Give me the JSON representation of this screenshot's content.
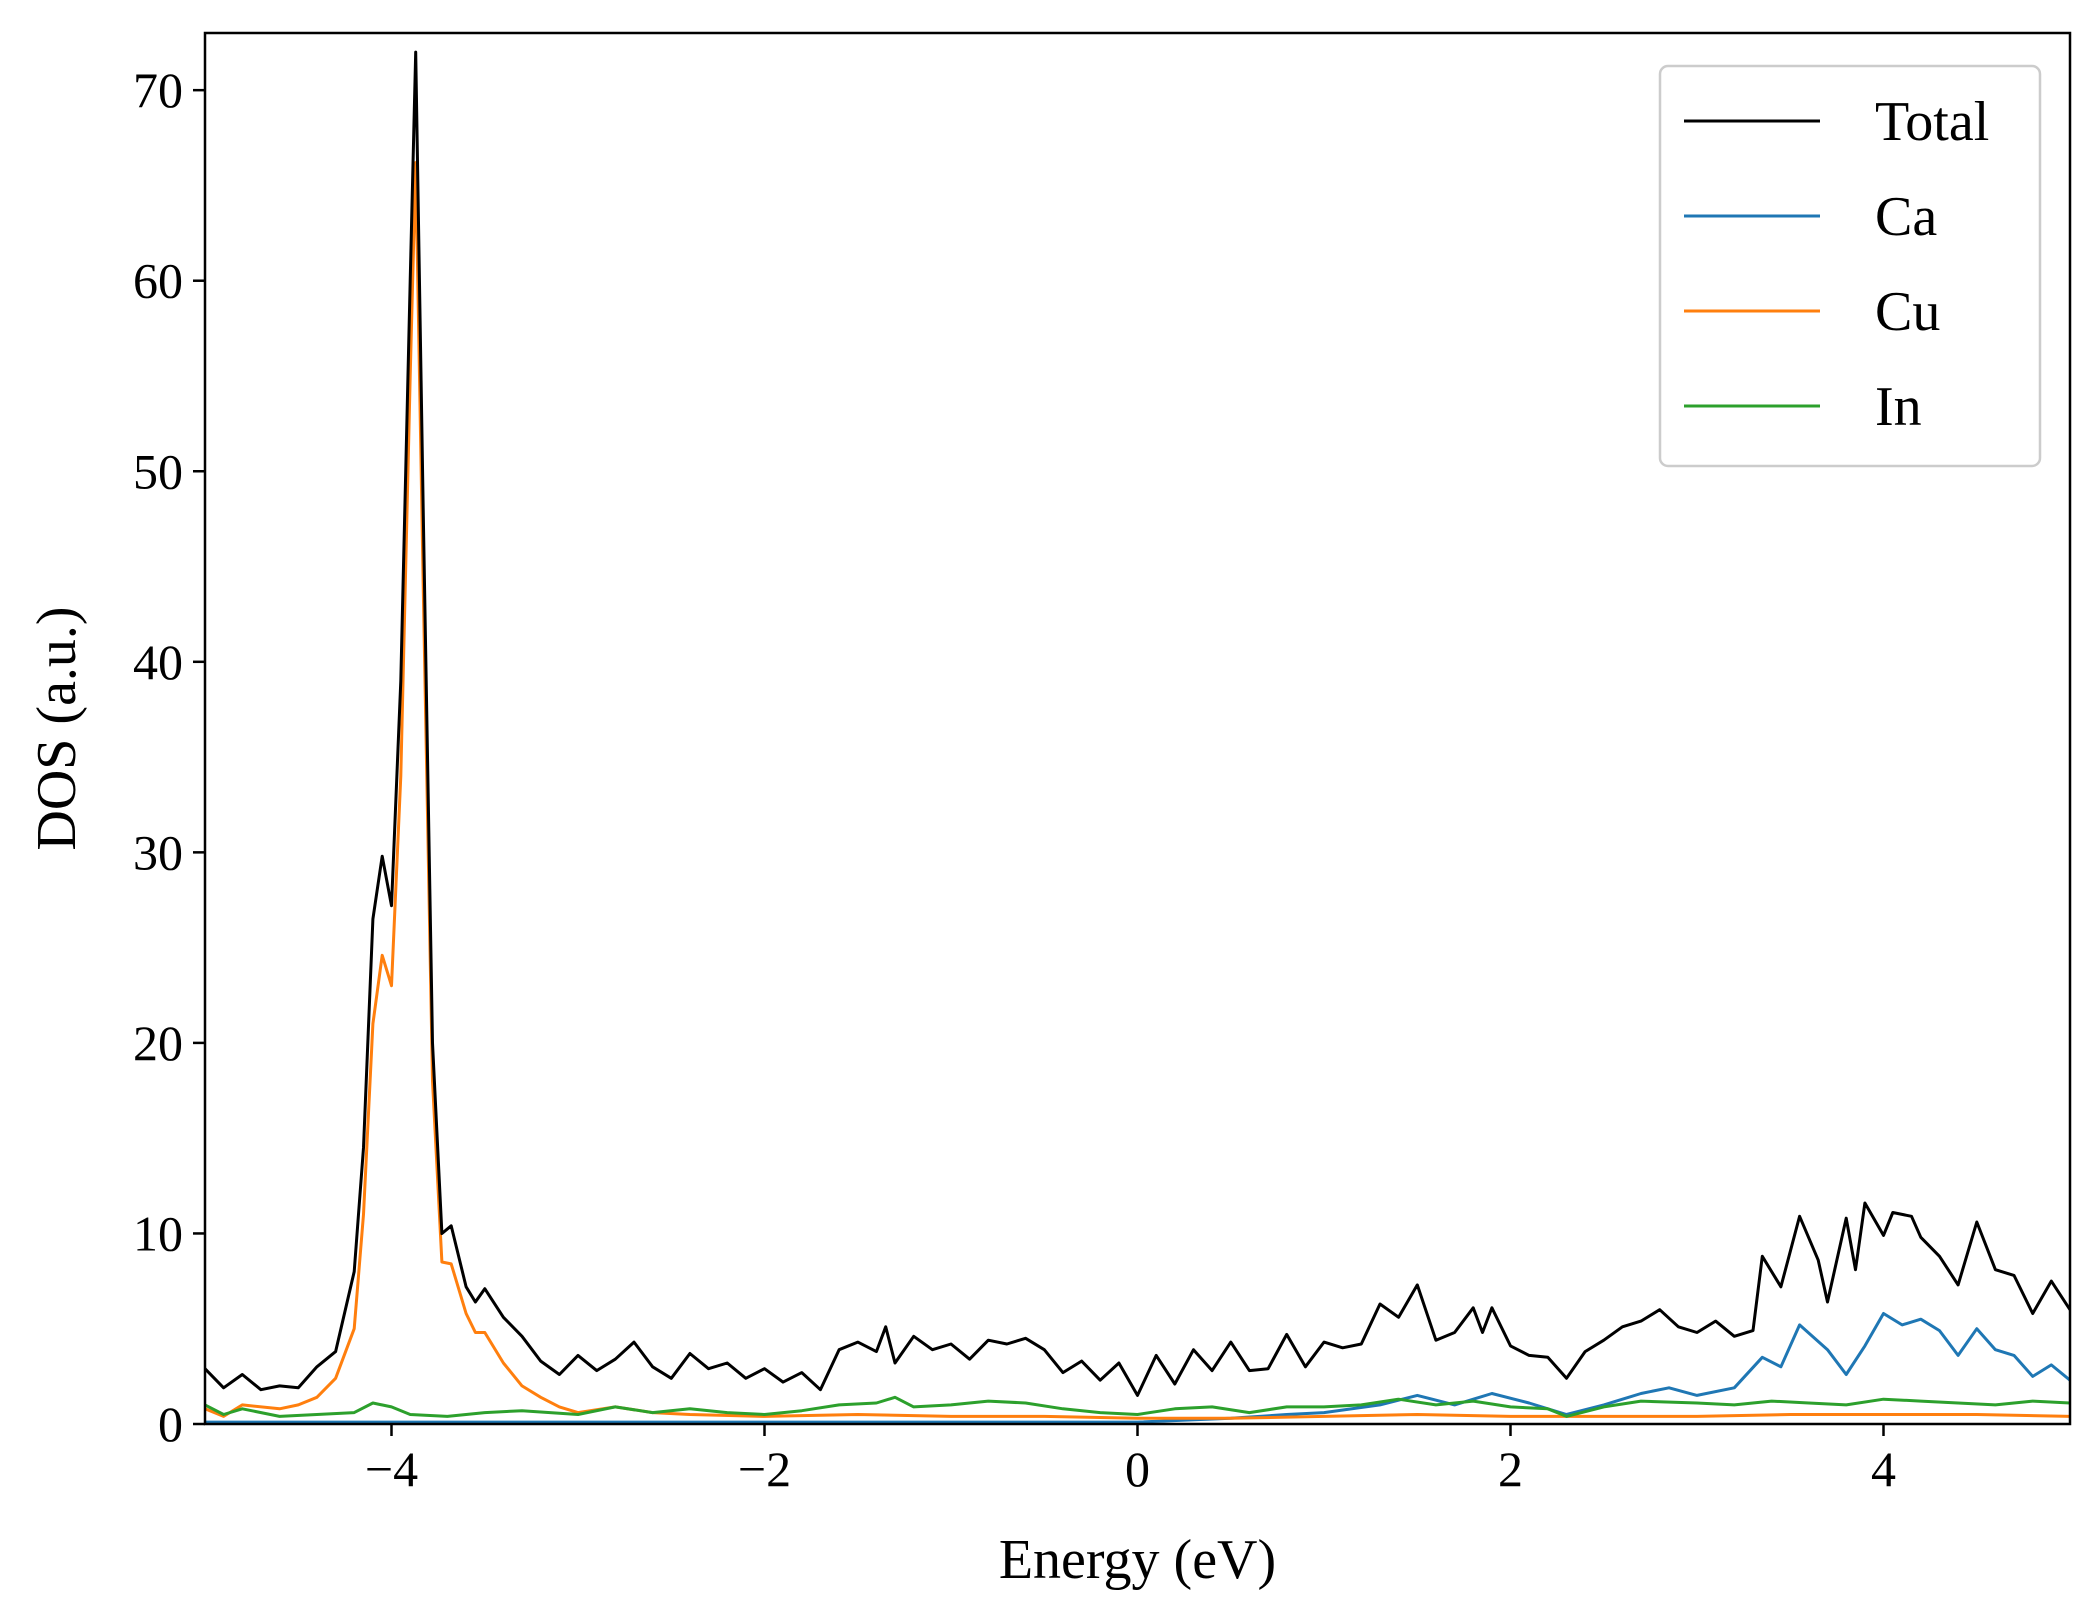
{
  "chart_data": {
    "type": "line",
    "title": "",
    "xlabel": "Energy (eV)",
    "ylabel": "DOS (a.u.)",
    "xlim": [
      -5,
      5
    ],
    "ylim": [
      0,
      73
    ],
    "xticks": [
      -4,
      -2,
      0,
      2,
      4
    ],
    "xtick_labels": [
      "−4",
      "−2",
      "0",
      "2",
      "4"
    ],
    "yticks": [
      0,
      10,
      20,
      30,
      40,
      50,
      60,
      70
    ],
    "ytick_labels": [
      "0",
      "10",
      "20",
      "30",
      "40",
      "50",
      "60",
      "70"
    ],
    "grid": false,
    "legend_position": "top-right",
    "series": [
      {
        "name": "Total",
        "color": "#000000",
        "points": [
          [
            -5.0,
            2.9
          ],
          [
            -4.9,
            1.9
          ],
          [
            -4.8,
            2.6
          ],
          [
            -4.7,
            1.8
          ],
          [
            -4.6,
            2.0
          ],
          [
            -4.5,
            1.9
          ],
          [
            -4.4,
            3.0
          ],
          [
            -4.3,
            3.8
          ],
          [
            -4.2,
            8.0
          ],
          [
            -4.15,
            14.5
          ],
          [
            -4.1,
            26.5
          ],
          [
            -4.05,
            29.8
          ],
          [
            -4.0,
            27.2
          ],
          [
            -3.95,
            39.0
          ],
          [
            -3.9,
            60.0
          ],
          [
            -3.87,
            72.0
          ],
          [
            -3.83,
            48.0
          ],
          [
            -3.78,
            20.0
          ],
          [
            -3.73,
            10.0
          ],
          [
            -3.68,
            10.4
          ],
          [
            -3.6,
            7.2
          ],
          [
            -3.55,
            6.4
          ],
          [
            -3.5,
            7.1
          ],
          [
            -3.4,
            5.6
          ],
          [
            -3.3,
            4.6
          ],
          [
            -3.2,
            3.3
          ],
          [
            -3.1,
            2.6
          ],
          [
            -3.0,
            3.6
          ],
          [
            -2.9,
            2.8
          ],
          [
            -2.8,
            3.4
          ],
          [
            -2.7,
            4.3
          ],
          [
            -2.6,
            3.0
          ],
          [
            -2.5,
            2.4
          ],
          [
            -2.4,
            3.7
          ],
          [
            -2.3,
            2.9
          ],
          [
            -2.2,
            3.2
          ],
          [
            -2.1,
            2.4
          ],
          [
            -2.0,
            2.9
          ],
          [
            -1.9,
            2.2
          ],
          [
            -1.8,
            2.7
          ],
          [
            -1.7,
            1.8
          ],
          [
            -1.6,
            3.9
          ],
          [
            -1.5,
            4.3
          ],
          [
            -1.4,
            3.8
          ],
          [
            -1.35,
            5.1
          ],
          [
            -1.3,
            3.2
          ],
          [
            -1.2,
            4.6
          ],
          [
            -1.1,
            3.9
          ],
          [
            -1.0,
            4.2
          ],
          [
            -0.9,
            3.4
          ],
          [
            -0.8,
            4.4
          ],
          [
            -0.7,
            4.2
          ],
          [
            -0.6,
            4.5
          ],
          [
            -0.5,
            3.9
          ],
          [
            -0.4,
            2.7
          ],
          [
            -0.3,
            3.3
          ],
          [
            -0.2,
            2.3
          ],
          [
            -0.1,
            3.2
          ],
          [
            0.0,
            1.5
          ],
          [
            0.1,
            3.6
          ],
          [
            0.2,
            2.1
          ],
          [
            0.3,
            3.9
          ],
          [
            0.4,
            2.8
          ],
          [
            0.5,
            4.3
          ],
          [
            0.6,
            2.8
          ],
          [
            0.7,
            2.9
          ],
          [
            0.8,
            4.7
          ],
          [
            0.9,
            3.0
          ],
          [
            1.0,
            4.3
          ],
          [
            1.1,
            4.0
          ],
          [
            1.2,
            4.2
          ],
          [
            1.3,
            6.3
          ],
          [
            1.4,
            5.6
          ],
          [
            1.5,
            7.3
          ],
          [
            1.6,
            4.4
          ],
          [
            1.7,
            4.8
          ],
          [
            1.8,
            6.1
          ],
          [
            1.85,
            4.8
          ],
          [
            1.9,
            6.1
          ],
          [
            2.0,
            4.1
          ],
          [
            2.1,
            3.6
          ],
          [
            2.2,
            3.5
          ],
          [
            2.3,
            2.4
          ],
          [
            2.4,
            3.8
          ],
          [
            2.5,
            4.4
          ],
          [
            2.6,
            5.1
          ],
          [
            2.7,
            5.4
          ],
          [
            2.8,
            6.0
          ],
          [
            2.9,
            5.1
          ],
          [
            3.0,
            4.8
          ],
          [
            3.1,
            5.4
          ],
          [
            3.2,
            4.6
          ],
          [
            3.3,
            4.9
          ],
          [
            3.35,
            8.8
          ],
          [
            3.45,
            7.2
          ],
          [
            3.55,
            10.9
          ],
          [
            3.65,
            8.6
          ],
          [
            3.7,
            6.4
          ],
          [
            3.8,
            10.8
          ],
          [
            3.85,
            8.1
          ],
          [
            3.9,
            11.6
          ],
          [
            4.0,
            9.9
          ],
          [
            4.05,
            11.1
          ],
          [
            4.15,
            10.9
          ],
          [
            4.2,
            9.8
          ],
          [
            4.3,
            8.8
          ],
          [
            4.4,
            7.3
          ],
          [
            4.5,
            10.6
          ],
          [
            4.6,
            8.1
          ],
          [
            4.7,
            7.8
          ],
          [
            4.8,
            5.8
          ],
          [
            4.9,
            7.5
          ],
          [
            5.0,
            6.0
          ]
        ]
      },
      {
        "name": "Ca",
        "color": "#1f77b4",
        "points": [
          [
            -5.0,
            0.1
          ],
          [
            -4.0,
            0.1
          ],
          [
            -3.0,
            0.1
          ],
          [
            -2.0,
            0.1
          ],
          [
            -1.0,
            0.1
          ],
          [
            0.0,
            0.1
          ],
          [
            0.5,
            0.3
          ],
          [
            0.8,
            0.5
          ],
          [
            1.0,
            0.6
          ],
          [
            1.3,
            1.0
          ],
          [
            1.5,
            1.5
          ],
          [
            1.7,
            1.0
          ],
          [
            1.9,
            1.6
          ],
          [
            2.1,
            1.1
          ],
          [
            2.3,
            0.5
          ],
          [
            2.5,
            1.0
          ],
          [
            2.7,
            1.6
          ],
          [
            2.85,
            1.9
          ],
          [
            3.0,
            1.5
          ],
          [
            3.2,
            1.9
          ],
          [
            3.35,
            3.5
          ],
          [
            3.45,
            3.0
          ],
          [
            3.55,
            5.2
          ],
          [
            3.7,
            3.9
          ],
          [
            3.8,
            2.6
          ],
          [
            3.9,
            4.1
          ],
          [
            4.0,
            5.8
          ],
          [
            4.1,
            5.2
          ],
          [
            4.2,
            5.5
          ],
          [
            4.3,
            4.9
          ],
          [
            4.4,
            3.6
          ],
          [
            4.5,
            5.0
          ],
          [
            4.6,
            3.9
          ],
          [
            4.7,
            3.6
          ],
          [
            4.8,
            2.5
          ],
          [
            4.9,
            3.1
          ],
          [
            5.0,
            2.3
          ]
        ]
      },
      {
        "name": "Cu",
        "color": "#ff7f0e",
        "points": [
          [
            -5.0,
            0.8
          ],
          [
            -4.9,
            0.4
          ],
          [
            -4.8,
            1.0
          ],
          [
            -4.6,
            0.8
          ],
          [
            -4.5,
            1.0
          ],
          [
            -4.4,
            1.4
          ],
          [
            -4.3,
            2.4
          ],
          [
            -4.2,
            5.0
          ],
          [
            -4.15,
            11.0
          ],
          [
            -4.1,
            21.0
          ],
          [
            -4.05,
            24.6
          ],
          [
            -4.0,
            23.0
          ],
          [
            -3.95,
            34.0
          ],
          [
            -3.9,
            55.0
          ],
          [
            -3.87,
            66.2
          ],
          [
            -3.83,
            44.0
          ],
          [
            -3.78,
            18.0
          ],
          [
            -3.73,
            8.5
          ],
          [
            -3.68,
            8.4
          ],
          [
            -3.6,
            5.8
          ],
          [
            -3.55,
            4.8
          ],
          [
            -3.5,
            4.8
          ],
          [
            -3.4,
            3.2
          ],
          [
            -3.3,
            2.0
          ],
          [
            -3.2,
            1.4
          ],
          [
            -3.1,
            0.9
          ],
          [
            -3.0,
            0.6
          ],
          [
            -2.8,
            0.9
          ],
          [
            -2.6,
            0.6
          ],
          [
            -2.4,
            0.5
          ],
          [
            -2.0,
            0.4
          ],
          [
            -1.5,
            0.5
          ],
          [
            -1.0,
            0.4
          ],
          [
            -0.5,
            0.4
          ],
          [
            0.0,
            0.3
          ],
          [
            0.5,
            0.3
          ],
          [
            1.0,
            0.4
          ],
          [
            1.5,
            0.5
          ],
          [
            2.0,
            0.4
          ],
          [
            2.5,
            0.4
          ],
          [
            3.0,
            0.4
          ],
          [
            3.5,
            0.5
          ],
          [
            4.0,
            0.5
          ],
          [
            4.5,
            0.5
          ],
          [
            5.0,
            0.4
          ]
        ]
      },
      {
        "name": "In",
        "color": "#2ca02c",
        "points": [
          [
            -5.0,
            1.0
          ],
          [
            -4.9,
            0.5
          ],
          [
            -4.8,
            0.8
          ],
          [
            -4.6,
            0.4
          ],
          [
            -4.4,
            0.5
          ],
          [
            -4.2,
            0.6
          ],
          [
            -4.1,
            1.1
          ],
          [
            -4.0,
            0.9
          ],
          [
            -3.9,
            0.5
          ],
          [
            -3.7,
            0.4
          ],
          [
            -3.5,
            0.6
          ],
          [
            -3.3,
            0.7
          ],
          [
            -3.0,
            0.5
          ],
          [
            -2.8,
            0.9
          ],
          [
            -2.6,
            0.6
          ],
          [
            -2.4,
            0.8
          ],
          [
            -2.2,
            0.6
          ],
          [
            -2.0,
            0.5
          ],
          [
            -1.8,
            0.7
          ],
          [
            -1.6,
            1.0
          ],
          [
            -1.4,
            1.1
          ],
          [
            -1.3,
            1.4
          ],
          [
            -1.2,
            0.9
          ],
          [
            -1.0,
            1.0
          ],
          [
            -0.8,
            1.2
          ],
          [
            -0.6,
            1.1
          ],
          [
            -0.4,
            0.8
          ],
          [
            -0.2,
            0.6
          ],
          [
            0.0,
            0.5
          ],
          [
            0.2,
            0.8
          ],
          [
            0.4,
            0.9
          ],
          [
            0.6,
            0.6
          ],
          [
            0.8,
            0.9
          ],
          [
            1.0,
            0.9
          ],
          [
            1.2,
            1.0
          ],
          [
            1.4,
            1.3
          ],
          [
            1.6,
            1.0
          ],
          [
            1.8,
            1.2
          ],
          [
            2.0,
            0.9
          ],
          [
            2.2,
            0.8
          ],
          [
            2.3,
            0.4
          ],
          [
            2.5,
            0.9
          ],
          [
            2.7,
            1.2
          ],
          [
            3.0,
            1.1
          ],
          [
            3.2,
            1.0
          ],
          [
            3.4,
            1.2
          ],
          [
            3.6,
            1.1
          ],
          [
            3.8,
            1.0
          ],
          [
            4.0,
            1.3
          ],
          [
            4.2,
            1.2
          ],
          [
            4.4,
            1.1
          ],
          [
            4.6,
            1.0
          ],
          [
            4.8,
            1.2
          ],
          [
            5.0,
            1.1
          ]
        ]
      }
    ]
  }
}
